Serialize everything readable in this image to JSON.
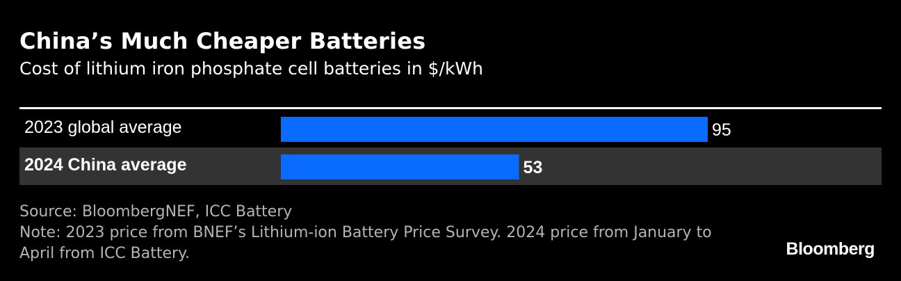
{
  "title": "China’s Much Cheaper Batteries",
  "subtitle": "Cost of lithium iron phosphate cell batteries in $/kWh",
  "source": "Source: BloombergNEF, ICC Battery",
  "note": "Note: 2023 price from BNEF’s Lithium-ion Battery Price Survey. 2024 price from January to April from ICC Battery.",
  "brand": "Bloomberg",
  "colors": {
    "background": "#000000",
    "bar": "#0a6cff",
    "highlight_row": "#333333",
    "text": "#ffffff",
    "footer_text": "#b4b4b4"
  },
  "chart_data": {
    "type": "bar",
    "orientation": "horizontal",
    "categories": [
      "2023 global average",
      "2024 China average"
    ],
    "values": [
      95,
      53
    ],
    "highlight": [
      false,
      true
    ],
    "unit": "$/kWh",
    "xlim": [
      0,
      95
    ],
    "title": "China’s Much Cheaper Batteries",
    "subtitle": "Cost of lithium iron phosphate cell batteries in $/kWh",
    "xlabel": "",
    "ylabel": ""
  }
}
